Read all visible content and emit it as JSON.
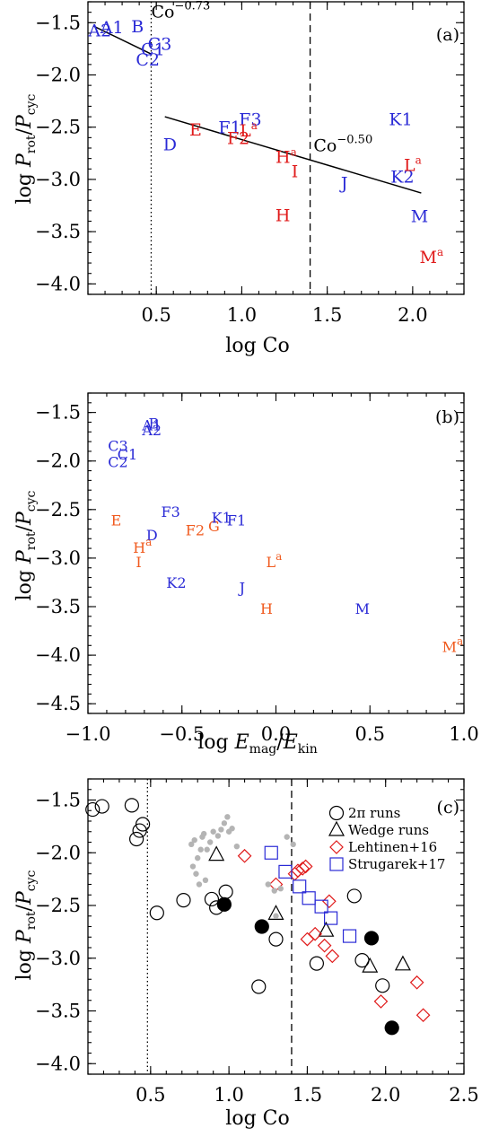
{
  "colors": {
    "blue": "#2a2ad6",
    "red": "#e01a1a",
    "orange": "#f05a1e",
    "grey": "#b4b4b4",
    "black": "#000000"
  },
  "chart_data": [
    {
      "type": "scatter",
      "panel_label": "(a)",
      "xlabel_main": "log Co",
      "ylabel": {
        "main": "log ",
        "P": "P",
        "sub_num": "rot",
        "slash": "/",
        "sub_den": "cyc"
      },
      "xlim": [
        0.1,
        2.3
      ],
      "ylim": [
        -4.1,
        -1.3
      ],
      "xticks": [
        0.5,
        1.0,
        1.5,
        2.0
      ],
      "yticks": [
        -4.0,
        -3.5,
        -3.0,
        -2.5,
        -2.0,
        -1.5
      ],
      "xtick_labels": [
        "0.5",
        "1.0",
        "1.5",
        "2.0"
      ],
      "ytick_labels": [
        "−4.0",
        "−3.5",
        "−3.0",
        "−2.5",
        "−2.0",
        "−1.5"
      ],
      "vlines": [
        {
          "x": 0.47,
          "style": "dotted"
        },
        {
          "x": 1.4,
          "style": "dashed"
        }
      ],
      "fits": [
        {
          "x": [
            0.13,
            0.47
          ],
          "y": [
            -1.53,
            -1.8
          ],
          "label": "Co",
          "exp": "−0.73",
          "label_x": 0.47,
          "label_y": -1.45
        },
        {
          "x": [
            0.55,
            2.05
          ],
          "y": [
            -2.4,
            -3.13
          ],
          "label": "Co",
          "exp": "−0.50",
          "label_x": 1.42,
          "label_y": -2.73
        }
      ],
      "points": [
        {
          "label": "A1",
          "sup": "",
          "x": 0.24,
          "y": -1.54,
          "color": "blue"
        },
        {
          "label": "A2",
          "sup": "",
          "x": 0.17,
          "y": -1.57,
          "color": "blue"
        },
        {
          "label": "B",
          "sup": "",
          "x": 0.39,
          "y": -1.53,
          "color": "blue"
        },
        {
          "label": "C1",
          "sup": "",
          "x": 0.48,
          "y": -1.75,
          "color": "blue"
        },
        {
          "label": "C3",
          "sup": "",
          "x": 0.52,
          "y": -1.7,
          "color": "blue"
        },
        {
          "label": "C2",
          "sup": "",
          "x": 0.45,
          "y": -1.85,
          "color": "blue"
        },
        {
          "label": "D",
          "sup": "",
          "x": 0.58,
          "y": -2.66,
          "color": "blue"
        },
        {
          "label": "E",
          "sup": "",
          "x": 0.73,
          "y": -2.52,
          "color": "red"
        },
        {
          "label": "F1",
          "sup": "",
          "x": 0.93,
          "y": -2.5,
          "color": "blue"
        },
        {
          "label": "F3",
          "sup": "",
          "x": 1.05,
          "y": -2.42,
          "color": "blue"
        },
        {
          "label": "F2",
          "sup": "",
          "x": 0.98,
          "y": -2.6,
          "color": "red"
        },
        {
          "label": "L",
          "sup": "a",
          "x": 1.04,
          "y": -2.53,
          "color": "red"
        },
        {
          "label": "H",
          "sup": "a",
          "x": 1.26,
          "y": -2.78,
          "color": "red"
        },
        {
          "label": "I",
          "sup": "",
          "x": 1.31,
          "y": -2.92,
          "color": "red"
        },
        {
          "label": "J",
          "sup": "",
          "x": 1.6,
          "y": -3.03,
          "color": "blue"
        },
        {
          "label": "H",
          "sup": "",
          "x": 1.24,
          "y": -3.34,
          "color": "red"
        },
        {
          "label": "K1",
          "sup": "",
          "x": 1.93,
          "y": -2.42,
          "color": "blue"
        },
        {
          "label": "K2",
          "sup": "",
          "x": 1.94,
          "y": -2.97,
          "color": "blue"
        },
        {
          "label": "L",
          "sup": "a",
          "x": 2.0,
          "y": -2.86,
          "color": "red"
        },
        {
          "label": "M",
          "sup": "",
          "x": 2.04,
          "y": -3.35,
          "color": "blue"
        },
        {
          "label": "M",
          "sup": "a",
          "x": 2.11,
          "y": -3.74,
          "color": "red"
        }
      ]
    },
    {
      "type": "scatter",
      "panel_label": "(b)",
      "xlabel": {
        "main": "log ",
        "E1": "E",
        "sub1": "mag",
        "slash": "/",
        "E2": "E",
        "sub2": "kin"
      },
      "ylabel": {
        "main": "log ",
        "P": "P",
        "sub_num": "rot",
        "slash": "/",
        "sub_den": "cyc"
      },
      "xlim": [
        -1.0,
        1.0
      ],
      "ylim": [
        -4.6,
        -1.3
      ],
      "xticks": [
        -1.0,
        -0.5,
        0.0,
        0.5,
        1.0
      ],
      "yticks": [
        -4.5,
        -4.0,
        -3.5,
        -3.0,
        -2.5,
        -2.0,
        -1.5
      ],
      "xtick_labels": [
        "−1.0",
        "−0.5",
        "0.0",
        "0.5",
        "1.0"
      ],
      "ytick_labels": [
        "−4.5",
        "−4.0",
        "−3.5",
        "−3.0",
        "−2.5",
        "−2.0",
        "−1.5"
      ],
      "points": [
        {
          "label": "A1",
          "sup": "",
          "x": -0.66,
          "y": -1.62,
          "color": "blue"
        },
        {
          "label": "A2",
          "sup": "",
          "x": -0.66,
          "y": -1.67,
          "color": "blue"
        },
        {
          "label": "B",
          "sup": "",
          "x": -0.65,
          "y": -1.6,
          "color": "blue"
        },
        {
          "label": "C3",
          "sup": "",
          "x": -0.84,
          "y": -1.83,
          "color": "blue"
        },
        {
          "label": "C1",
          "sup": "",
          "x": -0.79,
          "y": -1.92,
          "color": "blue"
        },
        {
          "label": "C2",
          "sup": "",
          "x": -0.84,
          "y": -2.0,
          "color": "blue"
        },
        {
          "label": "E",
          "sup": "",
          "x": -0.85,
          "y": -2.6,
          "color": "orange"
        },
        {
          "label": "F3",
          "sup": "",
          "x": -0.56,
          "y": -2.51,
          "color": "blue"
        },
        {
          "label": "D",
          "sup": "",
          "x": -0.66,
          "y": -2.75,
          "color": "blue"
        },
        {
          "label": "H",
          "sup": "a",
          "x": -0.71,
          "y": -2.88,
          "color": "orange"
        },
        {
          "label": "I",
          "sup": "",
          "x": -0.73,
          "y": -3.03,
          "color": "orange"
        },
        {
          "label": "F2",
          "sup": "",
          "x": -0.43,
          "y": -2.7,
          "color": "orange"
        },
        {
          "label": "G",
          "sup": "",
          "x": -0.33,
          "y": -2.66,
          "color": "orange"
        },
        {
          "label": "K1",
          "sup": "",
          "x": -0.29,
          "y": -2.57,
          "color": "blue"
        },
        {
          "label": "F1",
          "sup": "",
          "x": -0.21,
          "y": -2.6,
          "color": "blue"
        },
        {
          "label": "K2",
          "sup": "",
          "x": -0.53,
          "y": -3.24,
          "color": "blue"
        },
        {
          "label": "L",
          "sup": "a",
          "x": -0.01,
          "y": -3.03,
          "color": "orange"
        },
        {
          "label": "J",
          "sup": "",
          "x": -0.18,
          "y": -3.29,
          "color": "blue"
        },
        {
          "label": "H",
          "sup": "",
          "x": -0.05,
          "y": -3.51,
          "color": "orange"
        },
        {
          "label": "M",
          "sup": "",
          "x": 0.46,
          "y": -3.51,
          "color": "blue"
        },
        {
          "label": "M",
          "sup": "a",
          "x": 0.94,
          "y": -3.9,
          "color": "orange"
        }
      ]
    },
    {
      "type": "scatter",
      "panel_label": "(c)",
      "xlabel_main": "log Co",
      "ylabel": {
        "main": "log ",
        "P": "P",
        "sub_num": "rot",
        "slash": "/",
        "sub_den": "cyc"
      },
      "xlim": [
        0.1,
        2.5
      ],
      "ylim": [
        -4.1,
        -1.3
      ],
      "xticks": [
        0.5,
        1.0,
        1.5,
        2.0,
        2.5
      ],
      "yticks": [
        -4.0,
        -3.5,
        -3.0,
        -2.5,
        -2.0,
        -1.5
      ],
      "xtick_labels": [
        "0.5",
        "1.0",
        "1.5",
        "2.0",
        "2.5"
      ],
      "ytick_labels": [
        "−4.0",
        "−3.5",
        "−3.0",
        "−2.5",
        "−2.0",
        "−1.5"
      ],
      "vlines": [
        {
          "x": 0.48,
          "style": "dotted"
        },
        {
          "x": 1.4,
          "style": "dashed"
        }
      ],
      "legend": {
        "position": "top-right",
        "entries": [
          {
            "marker": "circle",
            "label": "2π runs"
          },
          {
            "marker": "triangle",
            "label": "Wedge runs"
          },
          {
            "marker": "diamond",
            "label": "Lehtinen+16"
          },
          {
            "marker": "square",
            "label": "Strugarek+17"
          }
        ]
      },
      "series": [
        {
          "marker": "circle",
          "fill": "none",
          "color": "black",
          "points": [
            [
              0.13,
              -1.59
            ],
            [
              0.19,
              -1.56
            ],
            [
              0.38,
              -1.55
            ],
            [
              0.41,
              -1.87
            ],
            [
              0.43,
              -1.79
            ],
            [
              0.45,
              -1.73
            ],
            [
              0.54,
              -2.57
            ],
            [
              0.71,
              -2.45
            ],
            [
              0.89,
              -2.44
            ],
            [
              0.92,
              -2.52
            ],
            [
              0.98,
              -2.37
            ],
            [
              1.19,
              -3.27
            ],
            [
              1.3,
              -2.82
            ],
            [
              1.56,
              -3.05
            ],
            [
              1.8,
              -2.41
            ],
            [
              1.85,
              -3.02
            ],
            [
              1.98,
              -3.26
            ]
          ]
        },
        {
          "marker": "circle",
          "fill": "filled",
          "color": "black",
          "points": [
            [
              0.97,
              -2.49
            ],
            [
              1.21,
              -2.7
            ],
            [
              1.91,
              -2.81
            ],
            [
              2.04,
              -3.66
            ]
          ]
        },
        {
          "marker": "triangle",
          "fill": "none",
          "color": "black",
          "points": [
            [
              0.92,
              -2.02
            ],
            [
              1.3,
              -2.58
            ],
            [
              1.62,
              -2.74
            ],
            [
              1.9,
              -3.08
            ],
            [
              2.11,
              -3.06
            ]
          ]
        },
        {
          "marker": "diamond",
          "fill": "none",
          "color": "red",
          "points": [
            [
              1.1,
              -2.03
            ],
            [
              1.3,
              -2.3
            ],
            [
              1.42,
              -2.2
            ],
            [
              1.44,
              -2.17
            ],
            [
              1.47,
              -2.15
            ],
            [
              1.49,
              -2.13
            ],
            [
              1.5,
              -2.82
            ],
            [
              1.55,
              -2.77
            ],
            [
              1.61,
              -2.88
            ],
            [
              1.64,
              -2.46
            ],
            [
              1.66,
              -2.98
            ],
            [
              1.97,
              -3.41
            ],
            [
              2.2,
              -3.23
            ],
            [
              2.24,
              -3.54
            ]
          ]
        },
        {
          "marker": "square",
          "fill": "none",
          "color": "blue",
          "points": [
            [
              1.27,
              -2.0
            ],
            [
              1.36,
              -2.18
            ],
            [
              1.45,
              -2.32
            ],
            [
              1.51,
              -2.43
            ],
            [
              1.59,
              -2.51
            ],
            [
              1.65,
              -2.62
            ],
            [
              1.77,
              -2.79
            ]
          ]
        },
        {
          "marker": "dot",
          "fill": "filled",
          "color": "grey",
          "points": [
            [
              0.76,
              -1.92
            ],
            [
              0.78,
              -1.88
            ],
            [
              0.8,
              -2.05
            ],
            [
              0.82,
              -1.97
            ],
            [
              0.77,
              -2.13
            ],
            [
              0.79,
              -2.2
            ],
            [
              0.83,
              -1.85
            ],
            [
              0.86,
              -1.97
            ],
            [
              0.84,
              -1.82
            ],
            [
              0.88,
              -1.9
            ],
            [
              0.9,
              -1.8
            ],
            [
              0.93,
              -1.84
            ],
            [
              0.95,
              -1.78
            ],
            [
              0.97,
              -1.72
            ],
            [
              1.0,
              -1.8
            ],
            [
              1.02,
              -1.77
            ],
            [
              1.05,
              -1.94
            ],
            [
              0.81,
              -2.3
            ],
            [
              0.85,
              -2.26
            ],
            [
              0.99,
              -1.66
            ],
            [
              1.25,
              -2.3
            ],
            [
              1.29,
              -2.36
            ],
            [
              1.33,
              -2.34
            ],
            [
              1.37,
              -1.85
            ],
            [
              1.41,
              -1.92
            ],
            [
              1.3,
              -2.6
            ]
          ]
        }
      ]
    }
  ]
}
